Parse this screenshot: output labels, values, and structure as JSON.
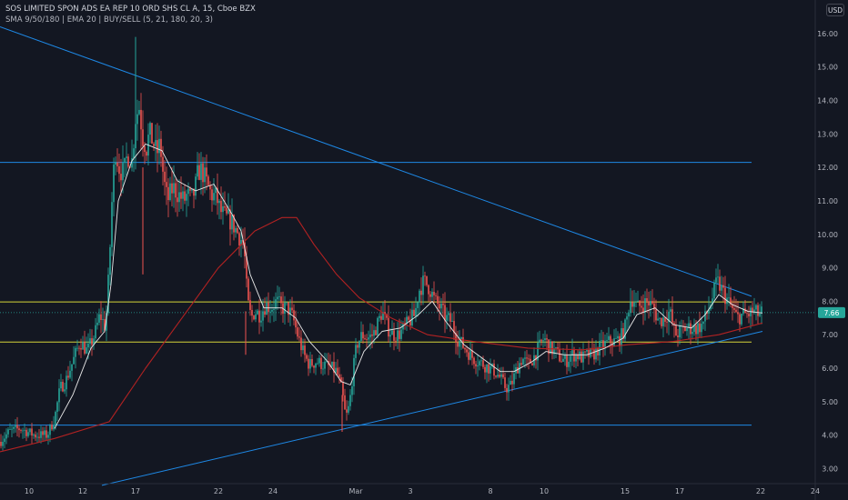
{
  "header": {
    "title": "SOS LIMITED SPON ADS EA REP 10 ORD SHS CL A, 15, Cboe BZX",
    "indicators": "SMA 9/50/180 | EMA 20 | BUY/SELL (5, 21, 180, 20, 3)"
  },
  "currency": "USD",
  "last_price_label": "7.66",
  "colors": {
    "background": "#131722",
    "up": "#26a69a",
    "down": "#ef5350",
    "trendline": "#2962ff",
    "horizontal_line": "#1e88e5",
    "support_resistance": "#d4d43a",
    "sma_fast": "#e8e8e8",
    "sma_slow": "#b22222",
    "axis_text": "#b2b5be",
    "price_tag": "#26a69a"
  },
  "chart_data": {
    "type": "candlestick",
    "title": "SOS LIMITED SPON ADS EA REP 10 ORD SHS CL A, 15, Cboe BZX",
    "x_ticks": [
      "10",
      "12",
      "17",
      "22",
      "24",
      "Mar",
      "3",
      "8",
      "10",
      "15",
      "17",
      "22",
      "24"
    ],
    "y_ticks": [
      "3.00",
      "4.00",
      "5.00",
      "6.00",
      "7.00",
      "8.00",
      "9.00",
      "10.00",
      "11.00",
      "12.00",
      "13.00",
      "14.00",
      "15.00",
      "16.00"
    ],
    "ylim": [
      2.55,
      16.35
    ],
    "price_path": [
      [
        0,
        3.8
      ],
      [
        10,
        4.1
      ],
      [
        22,
        4.2
      ],
      [
        38,
        4.0
      ],
      [
        52,
        4.0
      ],
      [
        60,
        4.5
      ],
      [
        66,
        5.4
      ],
      [
        72,
        5.6
      ],
      [
        80,
        6.2
      ],
      [
        88,
        6.8
      ],
      [
        96,
        6.5
      ],
      [
        104,
        7.0
      ],
      [
        110,
        7.6
      ],
      [
        116,
        7.2
      ],
      [
        120,
        9.0
      ],
      [
        124,
        11.6
      ],
      [
        127,
        12.5
      ],
      [
        131,
        12.0
      ],
      [
        136,
        11.8
      ],
      [
        140,
        12.4
      ],
      [
        145,
        12.2
      ],
      [
        149,
        13.5
      ],
      [
        153,
        13.8
      ],
      [
        157,
        12.9
      ],
      [
        161,
        12.6
      ],
      [
        164,
        13.0
      ],
      [
        168,
        12.8
      ],
      [
        172,
        12.4
      ],
      [
        176,
        12.7
      ],
      [
        180,
        11.6
      ],
      [
        184,
        11.0
      ],
      [
        190,
        11.4
      ],
      [
        196,
        11.2
      ],
      [
        202,
        11.0
      ],
      [
        206,
        11.2
      ],
      [
        210,
        11.0
      ],
      [
        214,
        11.3
      ],
      [
        218,
        11.9
      ],
      [
        222,
        11.9
      ],
      [
        226,
        11.6
      ],
      [
        232,
        11.2
      ],
      [
        238,
        11.1
      ],
      [
        242,
        10.7
      ],
      [
        248,
        10.5
      ],
      [
        254,
        10.4
      ],
      [
        260,
        10.1
      ],
      [
        264,
        9.9
      ],
      [
        268,
        9.7
      ],
      [
        272,
        8.0
      ],
      [
        276,
        7.5
      ],
      [
        280,
        7.7
      ],
      [
        286,
        7.6
      ],
      [
        292,
        7.9
      ],
      [
        298,
        7.8
      ],
      [
        304,
        8.0
      ],
      [
        310,
        7.8
      ],
      [
        316,
        7.8
      ],
      [
        322,
        7.5
      ],
      [
        328,
        6.9
      ],
      [
        334,
        6.4
      ],
      [
        340,
        6.1
      ],
      [
        348,
        6.2
      ],
      [
        356,
        6.1
      ],
      [
        364,
        6.0
      ],
      [
        370,
        5.9
      ],
      [
        376,
        5.3
      ],
      [
        380,
        4.5
      ],
      [
        384,
        4.9
      ],
      [
        388,
        5.9
      ],
      [
        392,
        6.7
      ],
      [
        398,
        7.0
      ],
      [
        404,
        6.9
      ],
      [
        410,
        7.0
      ],
      [
        416,
        7.4
      ],
      [
        420,
        7.7
      ],
      [
        426,
        7.2
      ],
      [
        432,
        7.0
      ],
      [
        438,
        7.0
      ],
      [
        444,
        7.2
      ],
      [
        450,
        7.4
      ],
      [
        456,
        7.6
      ],
      [
        460,
        8.3
      ],
      [
        466,
        8.6
      ],
      [
        472,
        8.4
      ],
      [
        478,
        8.0
      ],
      [
        484,
        7.8
      ],
      [
        490,
        7.5
      ],
      [
        496,
        7.4
      ],
      [
        502,
        6.9
      ],
      [
        508,
        6.7
      ],
      [
        514,
        6.5
      ],
      [
        520,
        6.3
      ],
      [
        526,
        6.2
      ],
      [
        532,
        6.1
      ],
      [
        538,
        6.0
      ],
      [
        544,
        5.9
      ],
      [
        550,
        5.7
      ],
      [
        556,
        5.4
      ],
      [
        562,
        5.5
      ],
      [
        568,
        6.0
      ],
      [
        574,
        6.3
      ],
      [
        580,
        6.1
      ],
      [
        586,
        6.3
      ],
      [
        592,
        6.6
      ],
      [
        598,
        6.9
      ],
      [
        604,
        6.6
      ],
      [
        610,
        6.5
      ],
      [
        616,
        6.3
      ],
      [
        622,
        6.2
      ],
      [
        628,
        6.4
      ],
      [
        634,
        6.4
      ],
      [
        640,
        6.3
      ],
      [
        646,
        6.4
      ],
      [
        652,
        6.4
      ],
      [
        658,
        6.6
      ],
      [
        664,
        6.7
      ],
      [
        670,
        6.8
      ],
      [
        676,
        6.8
      ],
      [
        682,
        6.9
      ],
      [
        688,
        7.3
      ],
      [
        692,
        8.0
      ],
      [
        696,
        8.1
      ],
      [
        700,
        7.8
      ],
      [
        706,
        7.9
      ],
      [
        712,
        8.0
      ],
      [
        718,
        7.8
      ],
      [
        724,
        7.4
      ],
      [
        730,
        7.5
      ],
      [
        736,
        7.7
      ],
      [
        742,
        7.0
      ],
      [
        748,
        7.1
      ],
      [
        754,
        7.2
      ],
      [
        760,
        7.2
      ],
      [
        766,
        7.2
      ],
      [
        772,
        7.3
      ],
      [
        778,
        7.7
      ],
      [
        784,
        8.2
      ],
      [
        788,
        8.6
      ],
      [
        792,
        8.4
      ],
      [
        798,
        8.1
      ],
      [
        804,
        7.8
      ],
      [
        810,
        7.5
      ],
      [
        816,
        7.6
      ],
      [
        822,
        7.6
      ],
      [
        828,
        7.7
      ],
      [
        834,
        7.6
      ],
      [
        838,
        7.66
      ]
    ],
    "sma_fast_path": [
      [
        60,
        4.2
      ],
      [
        80,
        5.2
      ],
      [
        100,
        6.6
      ],
      [
        115,
        7.1
      ],
      [
        122,
        8.5
      ],
      [
        130,
        11.0
      ],
      [
        145,
        12.2
      ],
      [
        160,
        12.7
      ],
      [
        178,
        12.5
      ],
      [
        195,
        11.6
      ],
      [
        215,
        11.3
      ],
      [
        235,
        11.5
      ],
      [
        255,
        10.6
      ],
      [
        265,
        10.1
      ],
      [
        275,
        8.8
      ],
      [
        290,
        7.8
      ],
      [
        310,
        7.8
      ],
      [
        325,
        7.5
      ],
      [
        340,
        6.8
      ],
      [
        360,
        6.2
      ],
      [
        375,
        5.6
      ],
      [
        385,
        5.5
      ],
      [
        400,
        6.5
      ],
      [
        420,
        7.1
      ],
      [
        440,
        7.2
      ],
      [
        460,
        7.6
      ],
      [
        475,
        8.0
      ],
      [
        490,
        7.4
      ],
      [
        510,
        6.7
      ],
      [
        530,
        6.3
      ],
      [
        550,
        5.9
      ],
      [
        565,
        5.9
      ],
      [
        585,
        6.2
      ],
      [
        600,
        6.5
      ],
      [
        620,
        6.4
      ],
      [
        645,
        6.4
      ],
      [
        665,
        6.6
      ],
      [
        685,
        6.9
      ],
      [
        700,
        7.6
      ],
      [
        720,
        7.8
      ],
      [
        740,
        7.3
      ],
      [
        760,
        7.2
      ],
      [
        775,
        7.6
      ],
      [
        790,
        8.2
      ],
      [
        805,
        7.9
      ],
      [
        822,
        7.7
      ],
      [
        838,
        7.65
      ]
    ],
    "sma_slow_path": [
      [
        0,
        3.5
      ],
      [
        60,
        3.9
      ],
      [
        120,
        4.4
      ],
      [
        160,
        6.0
      ],
      [
        200,
        7.5
      ],
      [
        240,
        9.0
      ],
      [
        280,
        10.1
      ],
      [
        310,
        10.5
      ],
      [
        326,
        10.5
      ],
      [
        345,
        9.7
      ],
      [
        370,
        8.8
      ],
      [
        395,
        8.1
      ],
      [
        430,
        7.5
      ],
      [
        470,
        7.0
      ],
      [
        520,
        6.8
      ],
      [
        580,
        6.6
      ],
      [
        640,
        6.55
      ],
      [
        690,
        6.7
      ],
      [
        740,
        6.8
      ],
      [
        790,
        7.0
      ],
      [
        838,
        7.35
      ]
    ],
    "trendline_upper": [
      [
        0,
        16.2
      ],
      [
        826,
        8.15
      ]
    ],
    "trendline_lower": [
      [
        112,
        2.5
      ],
      [
        838,
        7.1
      ]
    ],
    "horizontal_lines": [
      {
        "kind": "level",
        "y": 12.15,
        "x_range": [
          0,
          826
        ]
      },
      {
        "kind": "level",
        "y": 4.3,
        "x_range": [
          0,
          826
        ]
      },
      {
        "kind": "support_resistance",
        "y": 7.98,
        "x_range": [
          0,
          826
        ]
      },
      {
        "kind": "support_resistance",
        "y": 6.78,
        "x_range": [
          0,
          826
        ]
      }
    ],
    "last_price": 7.66,
    "grid": false
  }
}
